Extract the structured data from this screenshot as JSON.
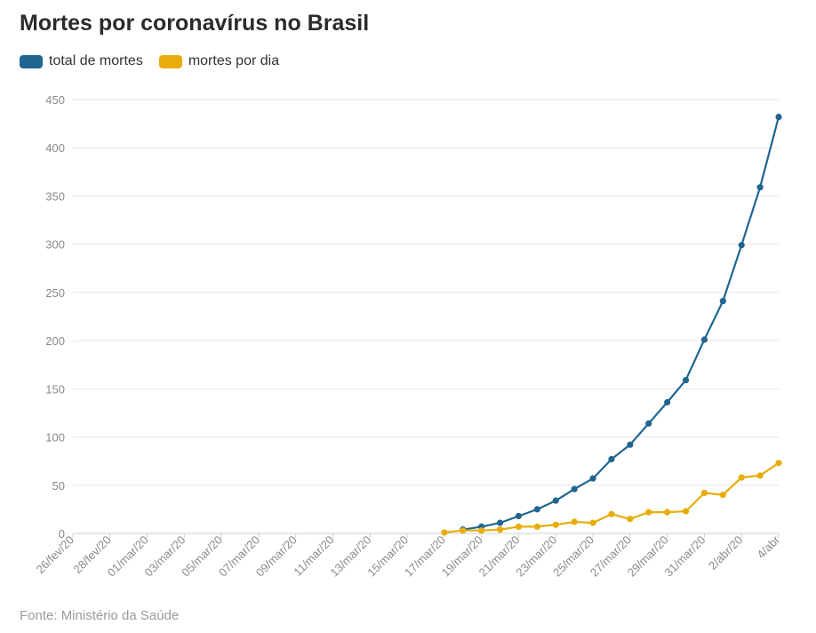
{
  "title": "Mortes por coronavírus no Brasil",
  "source": "Fonte: Ministério da Saúde",
  "colors": {
    "total": "#1f6690",
    "daily": "#e8ad0a",
    "grid": "#e6e6e6",
    "axis_text": "#8a8a8a"
  },
  "chart_data": {
    "type": "line",
    "legend_position": "top-left",
    "grid": true,
    "ylim": [
      0,
      450
    ],
    "yticks": [
      0,
      50,
      100,
      150,
      200,
      250,
      300,
      350,
      400,
      450
    ],
    "x": [
      "26/fev/20",
      "27/fev/20",
      "28/fev/20",
      "29/fev/20",
      "01/mar/20",
      "02/mar/20",
      "03/mar/20",
      "04/mar/20",
      "05/mar/20",
      "06/mar/20",
      "07/mar/20",
      "08/mar/20",
      "09/mar/20",
      "10/mar/20",
      "11/mar/20",
      "12/mar/20",
      "13/mar/20",
      "14/mar/20",
      "15/mar/20",
      "16/mar/20",
      "17/mar/20",
      "18/mar/20",
      "19/mar/20",
      "20/mar/20",
      "21/mar/20",
      "22/mar/20",
      "23/mar/20",
      "24/mar/20",
      "25/mar/20",
      "26/mar/20",
      "27/mar/20",
      "28/mar/20",
      "29/mar/20",
      "30/mar/20",
      "31/mar/20",
      "1/abr/20",
      "2/abr/20",
      "3/abr/20",
      "4/abr"
    ],
    "xtick_labels": [
      "26/fev/20",
      "28/fev/20",
      "01/mar/20",
      "03/mar/20",
      "05/mar/20",
      "07/mar/20",
      "09/mar/20",
      "11/mar/20",
      "13/mar/20",
      "15/mar/20",
      "17/mar/20",
      "19/mar/20",
      "21/mar/20",
      "23/mar/20",
      "25/mar/20",
      "27/mar/20",
      "29/mar/20",
      "31/mar/20",
      "2/abr/20",
      "4/abr"
    ],
    "series": [
      {
        "name": "total de mortes",
        "color": "#1f6690",
        "values": [
          null,
          null,
          null,
          null,
          null,
          null,
          null,
          null,
          null,
          null,
          null,
          null,
          null,
          null,
          null,
          null,
          null,
          null,
          null,
          null,
          null,
          4,
          7,
          11,
          18,
          25,
          34,
          46,
          57,
          77,
          92,
          114,
          136,
          159,
          201,
          241,
          299,
          359,
          432
        ]
      },
      {
        "name": "mortes por dia",
        "color": "#e8ad0a",
        "values": [
          null,
          null,
          null,
          null,
          null,
          null,
          null,
          null,
          null,
          null,
          null,
          null,
          null,
          null,
          null,
          null,
          null,
          null,
          null,
          null,
          1,
          3,
          3,
          4,
          7,
          7,
          9,
          12,
          11,
          20,
          15,
          22,
          22,
          23,
          42,
          40,
          58,
          60,
          73
        ]
      }
    ]
  }
}
